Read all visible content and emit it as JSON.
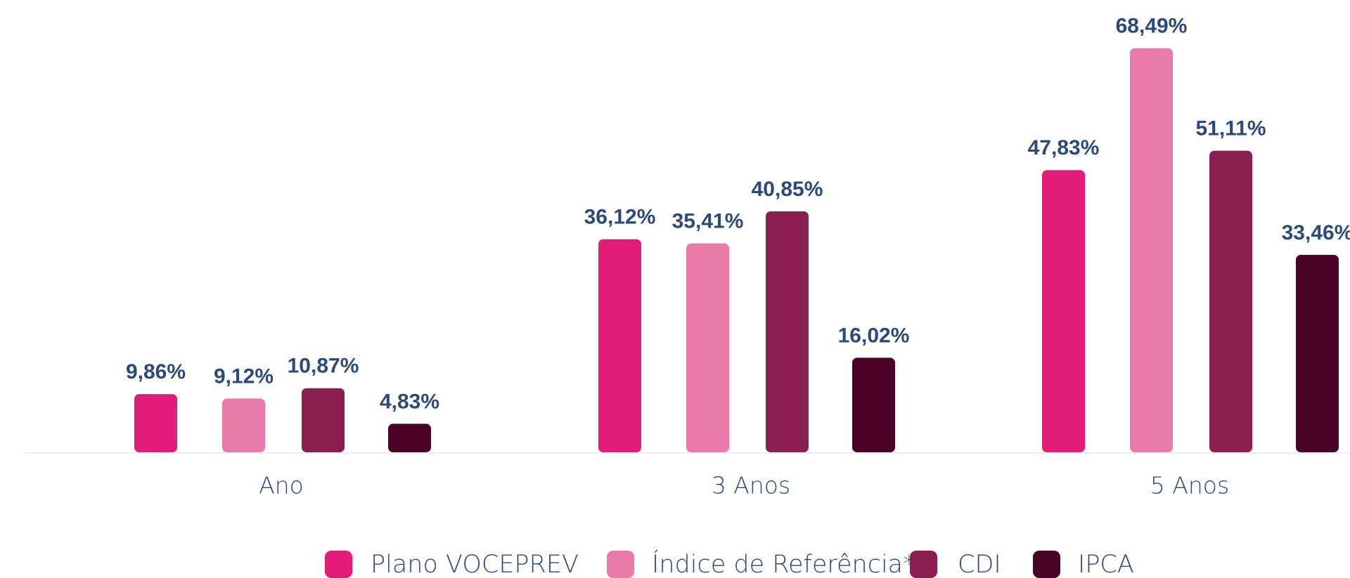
{
  "chart_data": {
    "type": "bar",
    "categories": [
      "Ano",
      "3 Anos",
      "5 Anos"
    ],
    "series": [
      {
        "name": "Plano VOCEPREV",
        "color": "#e31c79",
        "values": [
          9.86,
          36.12,
          47.83
        ],
        "value_labels": [
          "9,86%",
          "36,12%",
          "47,83%"
        ]
      },
      {
        "name": "Índice de Referência*",
        "color": "#e97aa9",
        "values": [
          9.12,
          35.41,
          68.49
        ],
        "value_labels": [
          "9,12%",
          "35,41%",
          "68,49%"
        ]
      },
      {
        "name": "CDI",
        "color": "#8b1f52",
        "values": [
          10.87,
          40.85,
          51.11
        ],
        "value_labels": [
          "10,87%",
          "40,85%",
          "51,11%"
        ]
      },
      {
        "name": "IPCA",
        "color": "#4a0228",
        "values": [
          4.83,
          16.02,
          33.46
        ],
        "value_labels": [
          "4,83%",
          "16,02%",
          "33,46%"
        ]
      }
    ]
  }
}
